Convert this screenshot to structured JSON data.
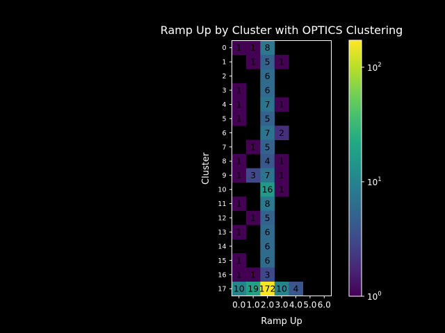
{
  "chart_data": {
    "type": "heatmap",
    "title": "Ramp Up by Cluster with OPTICS Clustering",
    "xlabel": "Ramp Up",
    "ylabel": "Cluster",
    "x_tick_labels": [
      "0.0",
      "1.0",
      "2.0",
      "3.0",
      "4.0",
      "5.0",
      "6.0"
    ],
    "y_tick_labels": [
      "0",
      "1",
      "2",
      "3",
      "4",
      "5",
      "6",
      "7",
      "8",
      "9",
      "10",
      "11",
      "12",
      "13",
      "14",
      "15",
      "16",
      "17"
    ],
    "colorbar": {
      "scale": "log",
      "vmin": 1,
      "vmax": 172,
      "tick_values": [
        1,
        10,
        100
      ],
      "tick_labels": [
        "10^0",
        "10^1",
        "10^2"
      ],
      "colormap": "viridis"
    },
    "cells": [
      {
        "row": 0,
        "col": 0,
        "value": 1
      },
      {
        "row": 0,
        "col": 1,
        "value": 1
      },
      {
        "row": 0,
        "col": 2,
        "value": 8
      },
      {
        "row": 1,
        "col": 1,
        "value": 1
      },
      {
        "row": 1,
        "col": 2,
        "value": 5
      },
      {
        "row": 1,
        "col": 3,
        "value": 1
      },
      {
        "row": 2,
        "col": 2,
        "value": 6
      },
      {
        "row": 3,
        "col": 0,
        "value": 1
      },
      {
        "row": 3,
        "col": 2,
        "value": 6
      },
      {
        "row": 4,
        "col": 0,
        "value": 1
      },
      {
        "row": 4,
        "col": 2,
        "value": 7
      },
      {
        "row": 4,
        "col": 3,
        "value": 1
      },
      {
        "row": 5,
        "col": 0,
        "value": 1
      },
      {
        "row": 5,
        "col": 2,
        "value": 5
      },
      {
        "row": 6,
        "col": 2,
        "value": 7
      },
      {
        "row": 6,
        "col": 3,
        "value": 2
      },
      {
        "row": 7,
        "col": 1,
        "value": 1
      },
      {
        "row": 7,
        "col": 2,
        "value": 5
      },
      {
        "row": 8,
        "col": 0,
        "value": 1
      },
      {
        "row": 8,
        "col": 2,
        "value": 4
      },
      {
        "row": 8,
        "col": 3,
        "value": 1
      },
      {
        "row": 9,
        "col": 0,
        "value": 1
      },
      {
        "row": 9,
        "col": 1,
        "value": 3
      },
      {
        "row": 9,
        "col": 2,
        "value": 7
      },
      {
        "row": 9,
        "col": 3,
        "value": 1
      },
      {
        "row": 10,
        "col": 2,
        "value": 16
      },
      {
        "row": 10,
        "col": 3,
        "value": 1
      },
      {
        "row": 11,
        "col": 0,
        "value": 1
      },
      {
        "row": 11,
        "col": 2,
        "value": 8
      },
      {
        "row": 12,
        "col": 1,
        "value": 1
      },
      {
        "row": 12,
        "col": 2,
        "value": 5
      },
      {
        "row": 13,
        "col": 0,
        "value": 1
      },
      {
        "row": 13,
        "col": 2,
        "value": 6
      },
      {
        "row": 14,
        "col": 2,
        "value": 6
      },
      {
        "row": 15,
        "col": 0,
        "value": 1
      },
      {
        "row": 15,
        "col": 2,
        "value": 6
      },
      {
        "row": 16,
        "col": 0,
        "value": 1
      },
      {
        "row": 16,
        "col": 1,
        "value": 1
      },
      {
        "row": 16,
        "col": 2,
        "value": 3
      },
      {
        "row": 17,
        "col": 0,
        "value": 10
      },
      {
        "row": 17,
        "col": 1,
        "value": 19
      },
      {
        "row": 17,
        "col": 2,
        "value": 172
      },
      {
        "row": 17,
        "col": 3,
        "value": 10
      },
      {
        "row": 17,
        "col": 4,
        "value": 4
      }
    ],
    "grid": false,
    "background_color": "#000000",
    "text_color": "#ffffff"
  }
}
